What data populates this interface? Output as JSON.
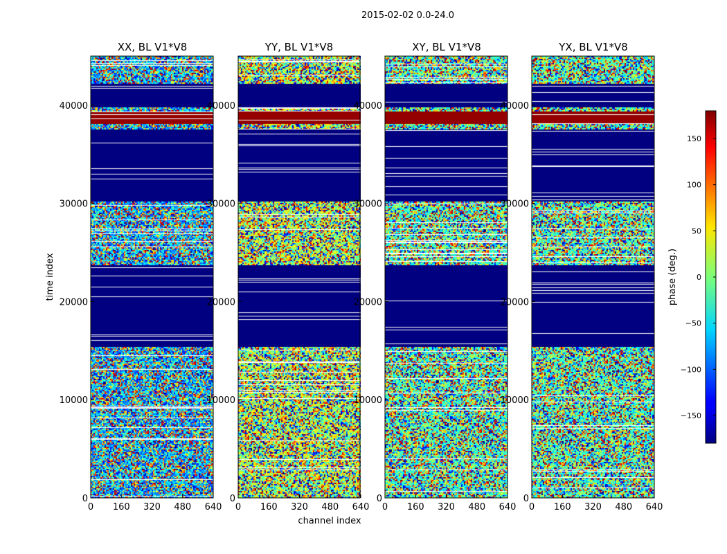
{
  "figure": {
    "suptitle": "2015-02-02 0.0-24.0"
  },
  "chart_data": {
    "type": "heatmap",
    "ylabel": "time index",
    "xlabel": "channel index",
    "xlim": [
      0,
      640
    ],
    "ylim": [
      0,
      45000
    ],
    "xticks": [
      "0",
      "160",
      "320",
      "480",
      "640"
    ],
    "yticks": [
      "0",
      "10000",
      "20000",
      "30000",
      "40000"
    ],
    "panels": [
      {
        "name": "xx",
        "title": "XX, BL V1*V8"
      },
      {
        "name": "yy",
        "title": "YY, BL V1*V8"
      },
      {
        "name": "xy",
        "title": "XY, BL V1*V8"
      },
      {
        "name": "yx",
        "title": "YX, BL V1*V8"
      }
    ],
    "colorbar": {
      "label": "phase (deg.)",
      "range": [
        -180,
        180
      ],
      "ticks": [
        "150",
        "100",
        "50",
        "0",
        "−50",
        "−100",
        "−150"
      ],
      "colormap": "jet"
    },
    "masked_time_ranges": [
      [
        15500,
        23800
      ],
      [
        30200,
        37600
      ],
      [
        39900,
        42300
      ]
    ],
    "saturated_phase_ranges": [
      [
        38200,
        39400
      ]
    ]
  }
}
